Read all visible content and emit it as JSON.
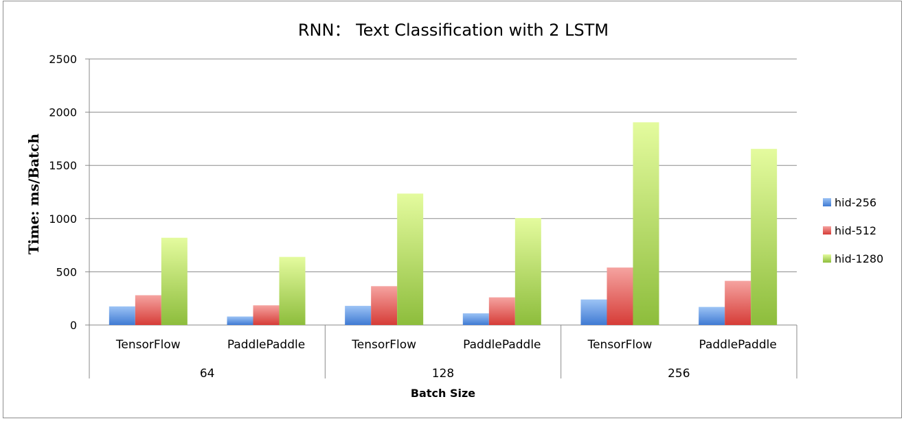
{
  "chart_data": {
    "type": "bar",
    "title": "RNN： Text Classification with 2 LSTM",
    "xlabel": "Batch Size",
    "ylabel": "Time:  ms/Batch",
    "ylim": [
      0,
      2500
    ],
    "yticks": [
      "0",
      "500",
      "1000",
      "1500",
      "2000",
      "2500"
    ],
    "grid": true,
    "legend_position": "right",
    "groups": [
      "64",
      "128",
      "256"
    ],
    "categories": [
      "TensorFlow",
      "PaddlePaddle",
      "TensorFlow",
      "PaddlePaddle",
      "TensorFlow",
      "PaddlePaddle"
    ],
    "series": [
      {
        "name": "hid-256",
        "color": "#5b8fd9",
        "values": [
          175,
          80,
          180,
          110,
          240,
          170
        ]
      },
      {
        "name": "hid-512",
        "color": "#e0534f",
        "values": [
          280,
          185,
          365,
          260,
          540,
          415
        ]
      },
      {
        "name": "hid-1280",
        "color": "#9cc84b",
        "values": [
          820,
          640,
          1235,
          1005,
          1905,
          1655
        ]
      }
    ]
  }
}
